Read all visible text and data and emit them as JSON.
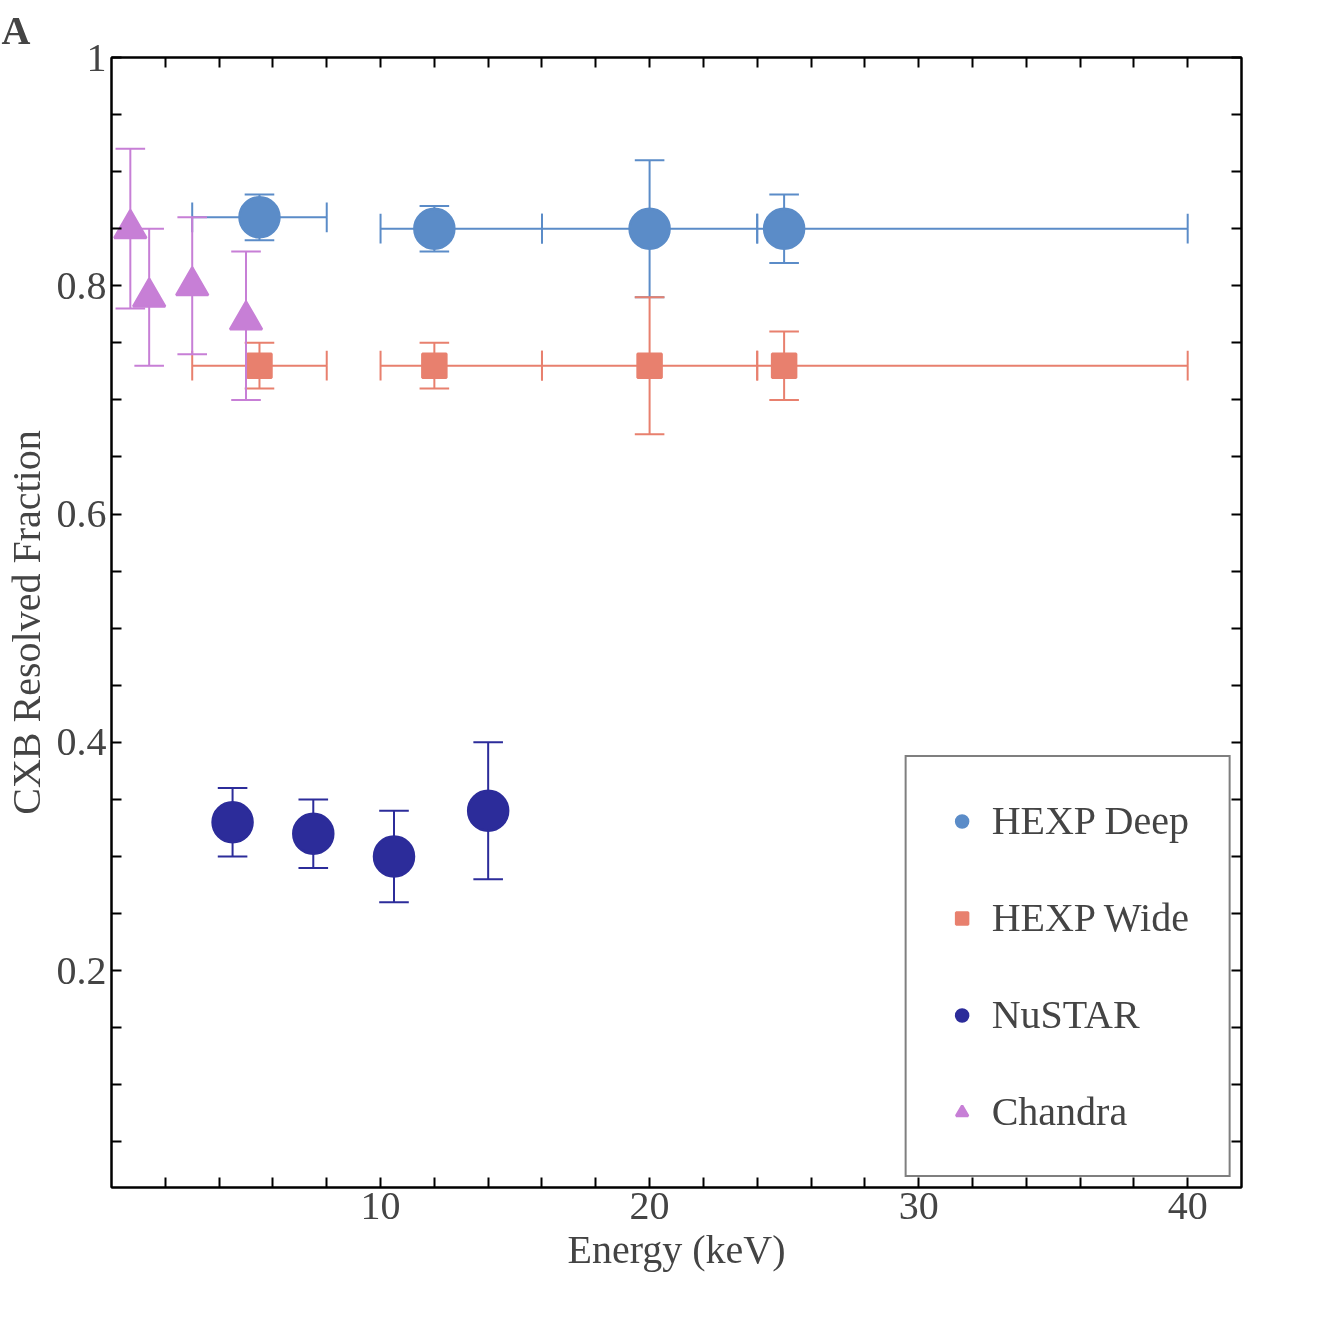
{
  "chart_data": {
    "type": "scatter",
    "xlabel": "Energy (keV)",
    "ylabel": "CXB Resolved Fraction",
    "annotations": [
      "A"
    ],
    "xlim": [
      0,
      42
    ],
    "ylim": [
      0.01,
      1
    ],
    "xticks": [
      {
        "value": 2,
        "label": null
      },
      {
        "value": 4,
        "label": null
      },
      {
        "value": 6,
        "label": null
      },
      {
        "value": 8,
        "label": null
      },
      10,
      {
        "value": 12,
        "label": null
      },
      {
        "value": 14,
        "label": null
      },
      {
        "value": 16,
        "label": null
      },
      {
        "value": 18,
        "label": null
      },
      20,
      {
        "value": 22,
        "label": null
      },
      {
        "value": 24,
        "label": null
      },
      {
        "value": 26,
        "label": null
      },
      {
        "value": 28,
        "label": null
      },
      30,
      {
        "value": 32,
        "label": null
      },
      {
        "value": 34,
        "label": null
      },
      {
        "value": 36,
        "label": null
      },
      {
        "value": 38,
        "label": null
      },
      40
    ],
    "yticks": [
      {
        "value": 0.05,
        "label": null
      },
      {
        "value": 0.1,
        "label": null
      },
      {
        "value": 0.15,
        "label": null
      },
      0.2,
      {
        "value": 0.25,
        "label": null
      },
      {
        "value": 0.3,
        "label": null
      },
      {
        "value": 0.35,
        "label": null
      },
      0.4,
      {
        "value": 0.45,
        "label": null
      },
      {
        "value": 0.5,
        "label": null
      },
      {
        "value": 0.55,
        "label": null
      },
      0.6,
      {
        "value": 0.65,
        "label": null
      },
      {
        "value": 0.7,
        "label": null
      },
      {
        "value": 0.75,
        "label": null
      },
      0.8,
      {
        "value": 0.85,
        "label": null
      },
      {
        "value": 0.9,
        "label": null
      },
      {
        "value": 0.95,
        "label": null
      },
      1
    ],
    "grid": false,
    "legend": "bottom right",
    "series": [
      {
        "name": "HEXP Deep",
        "color": "#5b8cc8",
        "marker": "circle",
        "x": [
          5.5,
          12,
          20,
          25
        ],
        "values": [
          0.86,
          0.85,
          0.85,
          0.85
        ],
        "errors": [
          [
            0.84,
            0.88
          ],
          [
            0.83,
            0.87
          ],
          [
            0.79,
            0.91
          ],
          [
            0.82,
            0.88
          ]
        ],
        "xerrors": [
          [
            3,
            8
          ],
          [
            10,
            16
          ],
          [
            16,
            24
          ],
          [
            24,
            40
          ]
        ]
      },
      {
        "name": "HEXP Wide",
        "color": "#e8806e",
        "marker": "square",
        "x": [
          5.5,
          12,
          20,
          25
        ],
        "values": [
          0.73,
          0.73,
          0.73,
          0.73
        ],
        "errors": [
          [
            0.71,
            0.75
          ],
          [
            0.71,
            0.75
          ],
          [
            0.67,
            0.79
          ],
          [
            0.7,
            0.76
          ]
        ],
        "xerrors": [
          [
            3,
            8
          ],
          [
            10,
            16
          ],
          [
            16,
            24
          ],
          [
            24,
            40
          ]
        ]
      },
      {
        "name": "NuSTAR",
        "color": "#2c2c9a",
        "marker": "circle",
        "x": [
          4.5,
          7.5,
          10.5,
          14
        ],
        "values": [
          0.33,
          0.32,
          0.3,
          0.34
        ],
        "errors": [
          [
            0.3,
            0.36
          ],
          [
            0.29,
            0.35
          ],
          [
            0.26,
            0.34
          ],
          [
            0.28,
            0.4
          ]
        ]
      },
      {
        "name": "Chandra",
        "color": "#c77fd6",
        "marker": "triangle",
        "x": [
          0.7,
          1.4,
          3,
          5
        ],
        "values": [
          0.85,
          0.79,
          0.8,
          0.77
        ],
        "errors": [
          [
            0.78,
            0.92
          ],
          [
            0.73,
            0.85
          ],
          [
            0.74,
            0.86
          ],
          [
            0.7,
            0.83
          ]
        ]
      }
    ]
  }
}
